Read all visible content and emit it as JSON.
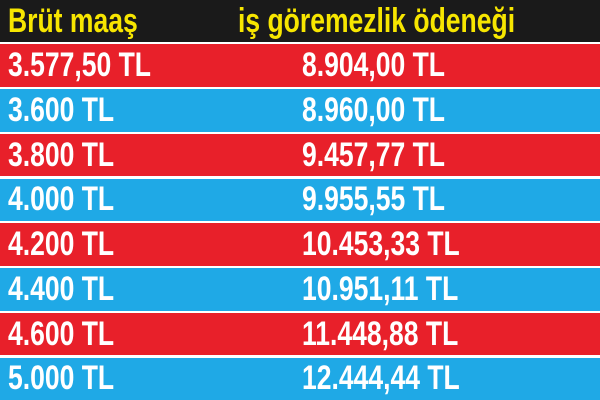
{
  "colors": {
    "header_bg": "#1a1a1a",
    "header_text": "#f7e600",
    "row_odd": "#e8202a",
    "row_even": "#1fa9e6",
    "row_text": "#ffffff"
  },
  "chart_data": {
    "type": "table",
    "columns": [
      "Brüt maaş",
      "iş göremezlik ödeneği"
    ],
    "rows": [
      [
        "3.577,50 TL",
        "8.904,00 TL"
      ],
      [
        "3.600 TL",
        "8.960,00 TL"
      ],
      [
        "3.800 TL",
        "9.457,77 TL"
      ],
      [
        "4.000 TL",
        "9.955,55 TL"
      ],
      [
        "4.200 TL",
        "10.453,33 TL"
      ],
      [
        "4.400 TL",
        "10.951,11 TL"
      ],
      [
        "4.600 TL",
        "11.448,88 TL"
      ],
      [
        "5.000 TL",
        "12.444,44 TL"
      ]
    ]
  }
}
